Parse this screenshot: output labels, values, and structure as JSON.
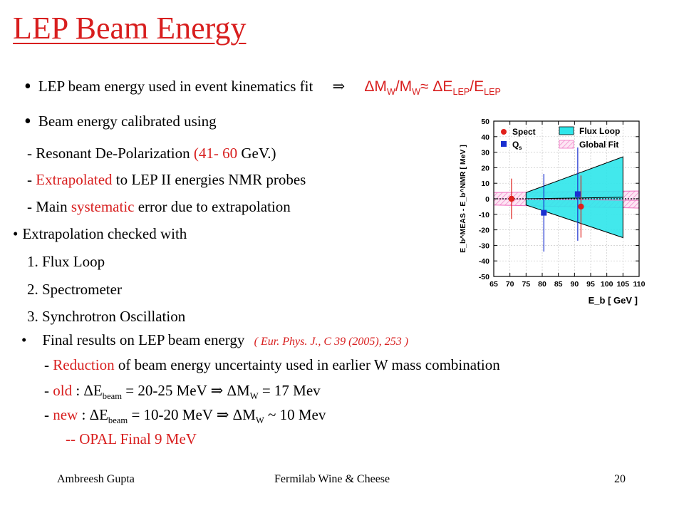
{
  "title": "LEP Beam Energy",
  "bullet1": {
    "text": "LEP beam energy used in event kinematics fit",
    "arrow": "⇒",
    "eq_a": "ΔM",
    "eq_a_sub": "W",
    "eq_b": "/M",
    "eq_b_sub": "W",
    "eq_c": "≈ ΔE",
    "eq_c_sub": "LEP",
    "eq_d": "/E",
    "eq_d_sub": "LEP"
  },
  "bullet2": {
    "text": "Beam energy calibrated using",
    "l1_dash": "- Resonant De-Polarization  ",
    "l1_red": "(41- 60",
    "l1_rest": " GeV.)",
    "l2_dash": "- ",
    "l2_red": "Extrapolated",
    "l2_rest": " to LEP II energies NMR probes",
    "l3_dash": "- Main ",
    "l3_red": "systematic",
    "l3_rest": " error due to extrapolation"
  },
  "bullet3": {
    "text": "Extrapolation checked with",
    "items": [
      "1. Flux Loop",
      "2. Spectrometer",
      "3. Synchrotron Oscillation"
    ]
  },
  "bullet4": {
    "text": "Final results on LEP beam energy",
    "ref": "( Eur. Phys. J., C 39 (2005), 253 )",
    "r1_dash": "- ",
    "r1_red": "Reduction",
    "r1_rest": " of beam energy uncertainty used in earlier W mass combination",
    "r2_lead": "- ",
    "r2_red": "old",
    "r2_a": " :  ΔE",
    "r2_sub1": "beam",
    "r2_b": " = 20-25 MeV ⇒ ΔM",
    "r2_sub2": "W",
    "r2_c": " = 17 Mev",
    "r3_lead": "- ",
    "r3_red": "new",
    "r3_a": " : ΔE",
    "r3_sub1": "beam",
    "r3_b": " = 10-20 MeV ⇒ ΔM",
    "r3_sub2": "W",
    "r3_c": " ~ 10 Mev",
    "r4": "-- OPAL Final  9 MeV"
  },
  "footer": {
    "author": "Ambreesh Gupta",
    "event": "Fermilab Wine & Cheese",
    "page": "20"
  },
  "chart_data": {
    "type": "scatter",
    "ylabel": "E_b^MEAS - E_b^NMR  [ MeV ]",
    "xlabel": "E_b  [ GeV ]",
    "xlim": [
      65,
      110
    ],
    "ylim": [
      -50,
      50
    ],
    "xticks": [
      65,
      70,
      75,
      80,
      85,
      90,
      95,
      100,
      105,
      110
    ],
    "yticks": [
      50,
      40,
      30,
      20,
      10,
      0,
      -10,
      -20,
      -30,
      -40,
      -50
    ],
    "legend": {
      "spect": "Spect",
      "qs": "Q",
      "qs_sub": "s",
      "flux": "Flux Loop",
      "global": "Global Fit"
    },
    "series": [
      {
        "name": "Spect",
        "color": "#e0201b",
        "marker": "circle",
        "points": [
          {
            "x": 70.5,
            "y": 0,
            "err": 13
          },
          {
            "x": 92,
            "y": -5,
            "err": 20
          }
        ]
      },
      {
        "name": "Q",
        "color": "#1a2fd0",
        "marker": "square",
        "points": [
          {
            "x": 80.5,
            "y": -9,
            "err": 25
          },
          {
            "x": 91,
            "y": 3,
            "err": 30
          }
        ]
      }
    ],
    "flux_band": {
      "color": "#2ee6ea",
      "x": [
        75,
        105
      ],
      "upper": [
        4,
        27
      ],
      "lower": [
        -4,
        -25
      ],
      "center": [
        0,
        1
      ]
    },
    "global_band": {
      "color": "#f06fc0",
      "x": [
        65,
        110
      ],
      "upper": [
        4,
        5
      ],
      "lower": [
        -4,
        -6
      ],
      "center": [
        0,
        -1
      ]
    },
    "dotted_zero": true
  }
}
